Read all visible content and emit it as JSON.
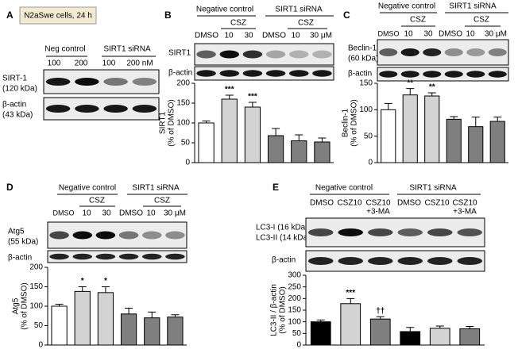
{
  "panels": {
    "A": {
      "letter": "A",
      "title": "N2aSwe cells, 24 h",
      "groups": [
        "Neg control",
        "SIRT1 siRNA"
      ],
      "lanes": [
        "100",
        "200",
        "100",
        "200 nM"
      ],
      "blots": [
        "SIRT-1",
        "(120 kDa)",
        "β-actin",
        "(43 kDa)"
      ]
    },
    "B": {
      "letter": "B",
      "groups": [
        "Negative control",
        "SIRT1 siRNA"
      ],
      "treatment": "CSZ",
      "lanes": [
        "DMSO",
        "10",
        "30",
        "DMSO",
        "10",
        "30 μM"
      ],
      "blots": [
        "SIRT1",
        "β-actin"
      ]
    },
    "C": {
      "letter": "C",
      "groups": [
        "Negative control",
        "SIRT1 siRNA"
      ],
      "treatment": "CSZ",
      "lanes": [
        "DMSO",
        "10",
        "30",
        "DMSO",
        "10",
        "30 μM"
      ],
      "blots": [
        "Beclin-1",
        "(60 kDa)",
        "β-actin"
      ]
    },
    "D": {
      "letter": "D",
      "groups": [
        "Negative control",
        "SIRT1 siRNA"
      ],
      "treatment": "CSZ",
      "lanes": [
        "DMSO",
        "10",
        "30",
        "DMSO",
        "10",
        "30 μM"
      ],
      "blots": [
        "Atg5",
        "(55 kDa)",
        "β-actin"
      ]
    },
    "E": {
      "letter": "E",
      "groups": [
        "Negative control",
        "SIRT1 siRNA"
      ],
      "lanes": [
        "DMSO",
        "CSZ10",
        "CSZ10",
        "DMSO",
        "CSZ10",
        "CSZ10"
      ],
      "lane_notes": [
        "+3-MA",
        "+3-MA"
      ],
      "blots": [
        "LC3-I (16 kDa)",
        "LC3-II (14 kDa)",
        "β-actin"
      ]
    }
  },
  "chart_data": [
    {
      "type": "bar",
      "y_label": "SIRT1",
      "y_unit": "(% of DMSO)",
      "values": [
        100,
        160,
        140,
        68,
        55,
        52
      ],
      "errors": [
        5,
        10,
        12,
        18,
        15,
        10
      ],
      "colors": [
        "#ffffff",
        "#d3d3d3",
        "#d3d3d3",
        "#7f7f7f",
        "#7f7f7f",
        "#7f7f7f"
      ],
      "annotations": [
        null,
        "***",
        "***",
        null,
        null,
        null
      ],
      "ylim": [
        0,
        200
      ],
      "yticks": [
        0,
        50,
        100,
        150,
        200
      ]
    },
    {
      "type": "bar",
      "y_label": "Beclin-1",
      "y_unit": "(% of DMSO)",
      "values": [
        100,
        128,
        126,
        82,
        68,
        78
      ],
      "errors": [
        12,
        12,
        6,
        5,
        18,
        8
      ],
      "colors": [
        "#ffffff",
        "#d3d3d3",
        "#d3d3d3",
        "#7f7f7f",
        "#7f7f7f",
        "#7f7f7f"
      ],
      "annotations": [
        null,
        "**",
        "**",
        null,
        null,
        null
      ],
      "ylim": [
        0,
        150
      ],
      "yticks": [
        0,
        50,
        100,
        150
      ]
    },
    {
      "type": "bar",
      "y_label": "Atg5",
      "y_unit": "(% of DMSO)",
      "values": [
        100,
        138,
        135,
        80,
        70,
        72
      ],
      "errors": [
        5,
        12,
        15,
        15,
        15,
        6
      ],
      "colors": [
        "#ffffff",
        "#d3d3d3",
        "#d3d3d3",
        "#7f7f7f",
        "#7f7f7f",
        "#7f7f7f"
      ],
      "annotations": [
        null,
        "*",
        "*",
        null,
        null,
        null
      ],
      "ylim": [
        0,
        200
      ],
      "yticks": [
        0,
        50,
        100,
        150,
        200
      ]
    },
    {
      "type": "bar",
      "y_label": "LC3-II / β-actin",
      "y_unit": "(% of DMSO)",
      "values": [
        100,
        178,
        112,
        58,
        72,
        70
      ],
      "errors": [
        8,
        22,
        10,
        18,
        10,
        10
      ],
      "colors": [
        "#000000",
        "#d3d3d3",
        "#7f7f7f",
        "#000000",
        "#d3d3d3",
        "#7f7f7f"
      ],
      "annotations": [
        null,
        "***",
        "††",
        null,
        null,
        null
      ],
      "ylim": [
        0,
        300
      ],
      "yticks": [
        0,
        50,
        100,
        150,
        200,
        250,
        300
      ]
    }
  ]
}
